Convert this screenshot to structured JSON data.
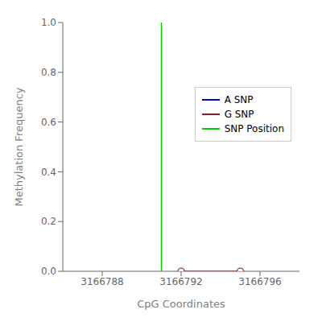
{
  "chart_data": {
    "type": "line",
    "xlabel": "CpG Coordinates",
    "ylabel": "Methylation Frequency",
    "xlim": [
      3166786,
      3166798
    ],
    "ylim": [
      0.0,
      1.0
    ],
    "xticks": [
      3166788,
      3166792,
      3166796
    ],
    "yticks": [
      {
        "value": 0.0,
        "label": "0.0"
      },
      0.2,
      0.4,
      0.6,
      0.8,
      {
        "value": 1.0,
        "label": "1.0"
      }
    ],
    "series": [
      {
        "name": "A SNP",
        "color": "#0000cc",
        "x": [],
        "values": []
      },
      {
        "name": "G SNP",
        "color": "#8b1a2a",
        "marker": "circle",
        "x": [
          3166792,
          3166795
        ],
        "values": [
          0.0,
          0.0
        ]
      }
    ],
    "reference_lines": [
      {
        "name": "SNP Position",
        "x": 3166791,
        "color": "#00cc00"
      }
    ],
    "legend": "right"
  }
}
